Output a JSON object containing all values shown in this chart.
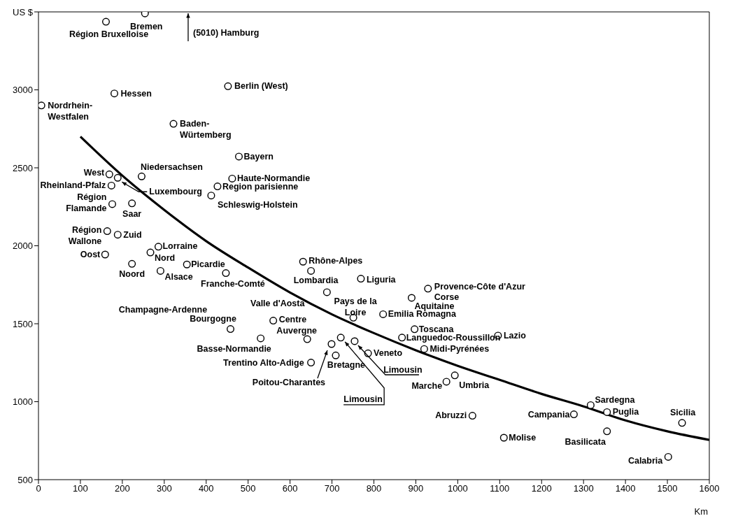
{
  "chart_data": {
    "type": "scatter",
    "xlabel": "Km",
    "xlim": [
      0,
      1600
    ],
    "xticks": [
      0,
      100,
      200,
      300,
      400,
      500,
      600,
      700,
      800,
      900,
      1000,
      1100,
      1200,
      1300,
      1400,
      1500,
      1600
    ],
    "ylim": [
      500,
      3500
    ],
    "yticks": [
      500,
      1000,
      1500,
      2000,
      2500,
      3000,
      {
        "value": 3500,
        "label": "US $"
      }
    ],
    "marker": "circle",
    "series": [
      {
        "color": "#000000",
        "x": [
          161,
          254,
          7,
          181,
          452,
          322,
          478,
          462,
          427,
          412,
          246,
          169,
          189,
          174,
          176,
          223,
          164,
          189,
          159,
          286,
          267,
          223,
          291,
          354,
          447,
          458,
          560,
          530,
          688,
          631,
          650,
          769,
          751,
          641,
          650,
          699,
          709,
          721,
          754,
          786,
          822,
          890,
          929,
          897,
          867,
          920,
          1096,
          973,
          993,
          1035,
          1110,
          1277,
          1317,
          1356,
          1356,
          1535,
          1502
        ],
        "values": [
          3437,
          3490,
          2900,
          2977,
          3023,
          2782,
          2572,
          2431,
          2381,
          2322,
          2445,
          2458,
          2436,
          2386,
          2267,
          2272,
          2094,
          2071,
          1944,
          1994,
          1957,
          1884,
          1839,
          1880,
          1825,
          1466,
          1520,
          1406,
          1702,
          1898,
          1839,
          1789,
          1539,
          1401,
          1251,
          1370,
          1297,
          1411,
          1388,
          1310,
          1561,
          1666,
          1725,
          1465,
          1411,
          1338,
          1424,
          1128,
          1169,
          910,
          769,
          919,
          978,
          933,
          810,
          864,
          646
        ]
      },
      {
        "type": "line",
        "color": "#000000",
        "marker": "none",
        "line_style": "solid",
        "x": [
          100,
          200,
          300,
          400,
          500,
          600,
          700,
          800,
          900,
          1000,
          1100,
          1200,
          1300,
          1400,
          1500,
          1600
        ],
        "values": [
          2700,
          2450,
          2230,
          2030,
          1860,
          1700,
          1560,
          1440,
          1330,
          1230,
          1140,
          1050,
          970,
          880,
          810,
          755
        ]
      }
    ],
    "annotations": [
      {
        "text": "Région Bruxelloise",
        "x": 161,
        "y": 3437
      },
      {
        "text": "Bremen",
        "x": 254,
        "y": 3490
      },
      {
        "text": "Nordrhein-Westfalen",
        "x": 7,
        "y": 2900
      },
      {
        "text": "Hessen",
        "x": 181,
        "y": 2977
      },
      {
        "text": "Berlin (West)",
        "x": 452,
        "y": 3023
      },
      {
        "text": "Baden-Würtemberg",
        "x": 322,
        "y": 2782
      },
      {
        "text": "Bayern",
        "x": 478,
        "y": 2572
      },
      {
        "text": "Haute-Normandie",
        "x": 462,
        "y": 2431
      },
      {
        "text": "Region parisienne",
        "x": 427,
        "y": 2381
      },
      {
        "text": "Schleswig-Holstein",
        "x": 412,
        "y": 2322
      },
      {
        "text": "Niedersachsen",
        "x": 246,
        "y": 2445
      },
      {
        "text": "West",
        "x": 169,
        "y": 2458
      },
      {
        "text": "Luxembourg",
        "x": 189,
        "y": 2436
      },
      {
        "text": "Rheinland-Pfalz",
        "x": 174,
        "y": 2386
      },
      {
        "text": "Région Flamande",
        "x": 176,
        "y": 2267
      },
      {
        "text": "Saar",
        "x": 223,
        "y": 2272
      },
      {
        "text": "Région Wallone",
        "x": 164,
        "y": 2094
      },
      {
        "text": "Zuid",
        "x": 189,
        "y": 2071
      },
      {
        "text": "Oost",
        "x": 159,
        "y": 1944
      },
      {
        "text": "Lorraine",
        "x": 286,
        "y": 1994
      },
      {
        "text": "Nord",
        "x": 267,
        "y": 1957
      },
      {
        "text": "Noord",
        "x": 223,
        "y": 1884
      },
      {
        "text": "Alsace",
        "x": 291,
        "y": 1839
      },
      {
        "text": "Picardie",
        "x": 354,
        "y": 1880
      },
      {
        "text": "Franche-Comté",
        "x": 447,
        "y": 1825
      },
      {
        "text": "Bourgogne",
        "x": 458,
        "y": 1466
      },
      {
        "text": "Centre",
        "x": 560,
        "y": 1520
      },
      {
        "text": "Basse-Normandie",
        "x": 530,
        "y": 1406
      },
      {
        "text": "Valle d'Aosta",
        "x": 688,
        "y": 1702
      },
      {
        "text": "Rhône-Alpes",
        "x": 631,
        "y": 1898
      },
      {
        "text": "Lombardia",
        "x": 650,
        "y": 1839
      },
      {
        "text": "Liguria",
        "x": 769,
        "y": 1789
      },
      {
        "text": "Pays de la Loire",
        "x": 751,
        "y": 1539
      },
      {
        "text": "Auvergne",
        "x": 641,
        "y": 1401
      },
      {
        "text": "Trentino Alto-Adige",
        "x": 650,
        "y": 1251
      },
      "Poitou-Charantes",
      {
        "text": "Bretagne",
        "x": 709,
        "y": 1297
      },
      {
        "text": "Limousin",
        "x": 721,
        "y": 1411
      },
      {
        "text": "Limousin",
        "x": 754,
        "y": 1388
      },
      {
        "text": "Veneto",
        "x": 786,
        "y": 1310
      },
      {
        "text": "Emilia Romagna",
        "x": 822,
        "y": 1561
      },
      {
        "text": "Aquitaine",
        "x": 890,
        "y": 1666
      },
      {
        "text": "Provence-Côte d'Azur",
        "x": 929,
        "y": 1725
      },
      {
        "text": "Toscana",
        "x": 897,
        "y": 1465
      },
      {
        "text": "Languedoc-Roussillon",
        "x": 867,
        "y": 1411
      },
      {
        "text": "Midi-Pyrénées",
        "x": 920,
        "y": 1338
      },
      {
        "text": "Lazio",
        "x": 1096,
        "y": 1424
      },
      {
        "text": "Marche",
        "x": 973,
        "y": 1128
      },
      {
        "text": "Umbria",
        "x": 993,
        "y": 1169
      },
      {
        "text": "Abruzzi",
        "x": 1035,
        "y": 910
      },
      {
        "text": "Molise",
        "x": 1110,
        "y": 769
      },
      {
        "text": "Campania",
        "x": 1277,
        "y": 919
      },
      {
        "text": "Sardegna",
        "x": 1317,
        "y": 978
      },
      {
        "text": "Puglia",
        "x": 1356,
        "y": 933
      },
      {
        "text": "Basilicata",
        "x": 1356,
        "y": 810
      },
      {
        "text": "Sicilia",
        "x": 1535,
        "y": 864
      },
      {
        "text": "Calabria",
        "x": 1502,
        "y": 646
      },
      {
        "text": "Corse",
        "x": 929,
        "y": 1725
      },
      "(5010) Hamburg",
      "Champagne-Ardenne"
    ]
  }
}
